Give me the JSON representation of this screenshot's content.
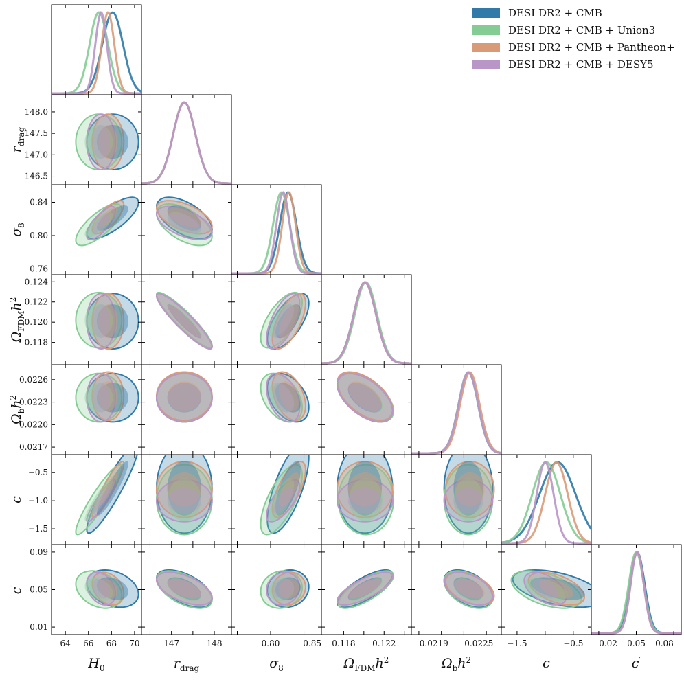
{
  "legend": [
    {
      "label": "DESI DR2 + CMB",
      "color": "#2f7aa8"
    },
    {
      "label": "DESI DR2 + CMB + Union3",
      "color": "#84cc94"
    },
    {
      "label": "DESI DR2 + CMB + Pantheon+",
      "color": "#d99a78"
    },
    {
      "label": "DESI DR2 + CMB + DESY5",
      "color": "#b896c8"
    }
  ],
  "chart_data": {
    "type": "corner",
    "title": "",
    "parameters": [
      {
        "key": "H0",
        "label": "H₀",
        "range": [
          62.8,
          70.6
        ],
        "ticks": [
          {
            "v": 64,
            "t": "64"
          },
          {
            "v": 66,
            "t": "66"
          },
          {
            "v": 68,
            "t": "68"
          },
          {
            "v": 70,
            "t": "70"
          }
        ]
      },
      {
        "key": "rdrag",
        "label": "r_drag",
        "range": [
          146.3,
          148.4
        ],
        "ticks": [
          {
            "v": 146.5,
            "t": "146.5"
          },
          {
            "v": 147.0,
            "t": "147.0"
          },
          {
            "v": 147.5,
            "t": "147.5"
          },
          {
            "v": 148.0,
            "t": "148.0"
          }
        ]
      },
      {
        "key": "sigma8",
        "label": "σ₈",
        "range": [
          0.753,
          0.861
        ],
        "ticks": [
          {
            "v": 0.76,
            "t": "0.76"
          },
          {
            "v": 0.8,
            "t": "0.80"
          },
          {
            "v": 0.84,
            "t": "0.84"
          }
        ]
      },
      {
        "key": "omfdm",
        "label": "Ω_FDM h²",
        "range": [
          0.1158,
          0.1247
        ],
        "ticks": [
          {
            "v": 0.118,
            "t": "0.118"
          },
          {
            "v": 0.12,
            "t": "0.120"
          },
          {
            "v": 0.122,
            "t": "0.122"
          },
          {
            "v": 0.124,
            "t": "0.124"
          }
        ]
      },
      {
        "key": "omb",
        "label": "Ω_b h²",
        "range": [
          0.0216,
          0.0228
        ],
        "ticks": [
          {
            "v": 0.0217,
            "t": "0.0217"
          },
          {
            "v": 0.022,
            "t": "0.0220"
          },
          {
            "v": 0.0223,
            "t": "0.0223"
          },
          {
            "v": 0.0226,
            "t": "0.0226"
          }
        ]
      },
      {
        "key": "c",
        "label": "c",
        "range": [
          -1.78,
          -0.18
        ],
        "ticks": [
          {
            "v": -1.5,
            "t": "−1.5"
          },
          {
            "v": -1.0,
            "t": "−1.0"
          },
          {
            "v": -0.5,
            "t": "−0.5"
          }
        ]
      },
      {
        "key": "cprime",
        "label": "c′",
        "range": [
          0.002,
          0.098
        ],
        "ticks": [
          {
            "v": 0.01,
            "t": "0.01"
          },
          {
            "v": 0.05,
            "t": "0.05"
          },
          {
            "v": 0.09,
            "t": "0.09"
          }
        ]
      }
    ],
    "x_tick_labels_shown": {
      "H0": [
        {
          "v": 64,
          "t": "64"
        },
        {
          "v": 66,
          "t": "66"
        },
        {
          "v": 68,
          "t": "68"
        },
        {
          "v": 70,
          "t": "70"
        }
      ],
      "rdrag": [
        {
          "v": 147,
          "t": "147"
        },
        {
          "v": 148,
          "t": "148"
        }
      ],
      "sigma8": [
        {
          "v": 0.8,
          "t": "0.80"
        },
        {
          "v": 0.85,
          "t": "0.85"
        }
      ],
      "omfdm": [
        {
          "v": 0.118,
          "t": "0.118"
        },
        {
          "v": 0.122,
          "t": "0.122"
        }
      ],
      "omb": [
        {
          "v": 0.0219,
          "t": "0.0219"
        },
        {
          "v": 0.0225,
          "t": "0.0225"
        }
      ],
      "c": [
        {
          "v": -1.5,
          "t": "−1.5"
        },
        {
          "v": -0.5,
          "t": "−0.5"
        }
      ],
      "cprime": [
        {
          "v": 0.02,
          "t": "0.02"
        },
        {
          "v": 0.05,
          "t": "0.05"
        },
        {
          "v": 0.08,
          "t": "0.08"
        }
      ]
    },
    "series": [
      {
        "name": "DESI DR2 + CMB",
        "mean": {
          "H0": 68.1,
          "rdrag": 147.3,
          "sigma8": 0.821,
          "omfdm": 0.1201,
          "omb": 0.02236,
          "c": -0.78,
          "cprime": 0.051
        },
        "sd": {
          "H0": 0.9,
          "rdrag": 0.26,
          "sigma8": 0.01,
          "omfdm": 0.0011,
          "omb": 0.00013,
          "c": 0.32,
          "cprime": 0.008
        }
      },
      {
        "name": "DESI DR2 + CMB + Union3",
        "mean": {
          "H0": 66.9,
          "rdrag": 147.3,
          "sigma8": 0.813,
          "omfdm": 0.1202,
          "omb": 0.02236,
          "c": -0.98,
          "cprime": 0.05
        },
        "sd": {
          "H0": 0.8,
          "rdrag": 0.26,
          "sigma8": 0.01,
          "omfdm": 0.0011,
          "omb": 0.00013,
          "c": 0.25,
          "cprime": 0.008
        }
      },
      {
        "name": "DESI DR2 + CMB + Pantheon+",
        "mean": {
          "H0": 67.7,
          "rdrag": 147.3,
          "sigma8": 0.822,
          "omfdm": 0.1201,
          "omb": 0.02238,
          "c": -0.8,
          "cprime": 0.051
        },
        "sd": {
          "H0": 0.55,
          "rdrag": 0.26,
          "sigma8": 0.008,
          "omfdm": 0.0011,
          "omb": 0.00013,
          "c": 0.2,
          "cprime": 0.007
        }
      },
      {
        "name": "DESI DR2 + CMB + DESY5",
        "mean": {
          "H0": 67.1,
          "rdrag": 147.3,
          "sigma8": 0.815,
          "omfdm": 0.1201,
          "omb": 0.02236,
          "c": -1.0,
          "cprime": 0.051
        },
        "sd": {
          "H0": 0.5,
          "rdrag": 0.26,
          "sigma8": 0.008,
          "omfdm": 0.0011,
          "omb": 0.00013,
          "c": 0.15,
          "cprime": 0.007
        }
      }
    ],
    "correlations": {
      "H0|rdrag": 0.0,
      "H0|sigma8": 0.75,
      "H0|omfdm": 0.0,
      "H0|omb": 0.0,
      "H0|c": 0.92,
      "H0|cprime": -0.3,
      "rdrag|sigma8": -0.55,
      "rdrag|omfdm": -0.92,
      "rdrag|omb": 0.0,
      "rdrag|c": 0.0,
      "rdrag|cprime": -0.55,
      "sigma8|omfdm": 0.65,
      "sigma8|omb": -0.4,
      "sigma8|c": 0.7,
      "sigma8|cprime": 0.1,
      "omfdm|omb": -0.55,
      "omfdm|c": 0.0,
      "omfdm|cprime": 0.75,
      "omb|c": 0.0,
      "omb|cprime": -0.45,
      "c|cprime": -0.5
    }
  }
}
